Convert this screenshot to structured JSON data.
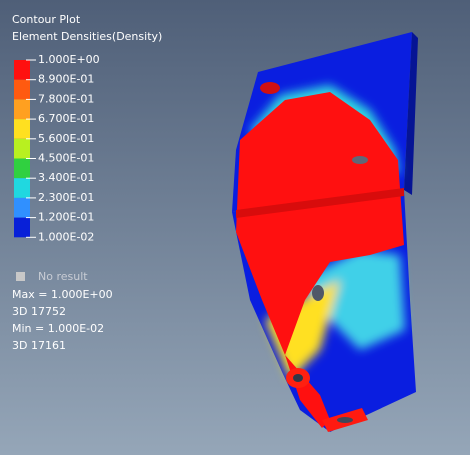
{
  "header": {
    "title": "Contour Plot",
    "subtitle": "Element Densities(Density)"
  },
  "legend": {
    "levels": [
      "1.000E+00",
      "8.900E-01",
      "7.800E-01",
      "6.700E-01",
      "5.600E-01",
      "4.500E-01",
      "3.400E-01",
      "2.300E-01",
      "1.200E-01",
      "1.000E-02"
    ],
    "colors": [
      "#ff1010",
      "#ff5a10",
      "#ffa020",
      "#ffe020",
      "#b8f020",
      "#30d040",
      "#20d8e0",
      "#3090ff",
      "#0820d8"
    ],
    "no_result": "No result"
  },
  "info": [
    "Max = 1.000E+00",
    "3D 17752",
    "Min = 1.000E-02",
    "3D 17161"
  ]
}
